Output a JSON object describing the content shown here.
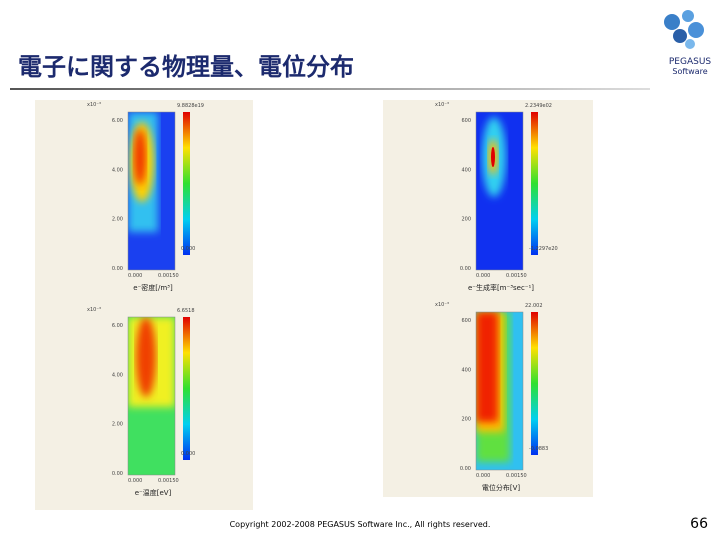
{
  "header": {
    "title": "電子に関する物理量、電位分布",
    "logo": {
      "name": "PEGASUS",
      "sub": "Software"
    }
  },
  "panels": [
    {
      "scale": "x10⁻³",
      "yticks": [
        "6.00",
        "4.00",
        "2.00",
        "0.00"
      ],
      "xticks": [
        "0.000",
        "0.00150"
      ],
      "colorbar": [
        "9.8828e19",
        "0.000"
      ],
      "caption": "e⁻密度[/m³]"
    },
    {
      "scale": "x10⁻³",
      "yticks": [
        "600",
        "400",
        "200",
        "0.00"
      ],
      "xticks": [
        "0.000",
        "0.00150"
      ],
      "colorbar": [
        "2.2349e02",
        "-1.2297e20"
      ],
      "caption": "e⁻生成率[m⁻³sec⁻¹]"
    },
    {
      "scale": "x10⁻³",
      "yticks": [
        "6.00",
        "4.00",
        "2.00",
        "0.00"
      ],
      "xticks": [
        "0.000",
        "0.00150"
      ],
      "colorbar": [
        "6.6518",
        "0.000"
      ],
      "caption": "e⁻温度[eV]"
    },
    {
      "scale": "x10⁻³",
      "yticks": [
        "600",
        "400",
        "200",
        "0.00"
      ],
      "xticks": [
        "0.000",
        "0.00150"
      ],
      "colorbar": [
        "22.002",
        "-0.0883"
      ],
      "caption": "電位分布[V]"
    }
  ],
  "footer": {
    "copyright": "Copyright 2002-2008 PEGASUS Software Inc., All rights reserved.",
    "page": "66"
  }
}
